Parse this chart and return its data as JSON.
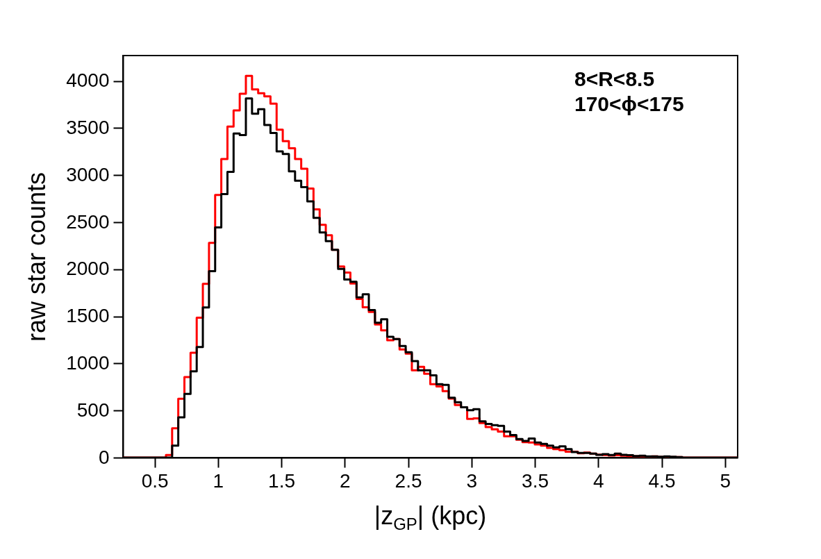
{
  "chart_data": {
    "type": "histogram",
    "xlabel": "|z$_{GP}$| (kpc)",
    "ylabel": "raw star counts",
    "annotations": [
      "8<R<8.5",
      "170<ϕ<175"
    ],
    "xlim": [
      0.25,
      5.1
    ],
    "xticks": [
      0.5,
      1,
      1.5,
      2,
      2.5,
      3,
      3.5,
      4,
      4.5,
      5
    ],
    "ylim": [
      0,
      4270
    ],
    "yticks": [
      0,
      500,
      1000,
      1500,
      2000,
      2500,
      3000,
      3500,
      4000
    ],
    "bins": [
      0.25,
      0.2985,
      0.347,
      0.3955,
      0.444,
      0.4925,
      0.541,
      0.5895,
      0.638,
      0.6865,
      0.735,
      0.7835,
      0.832,
      0.8805,
      0.929,
      0.9775,
      1.026,
      1.0745,
      1.123,
      1.1715,
      1.22,
      1.2685,
      1.317,
      1.3655,
      1.414,
      1.4625,
      1.511,
      1.5595,
      1.608,
      1.6565,
      1.705,
      1.7535,
      1.802,
      1.8505,
      1.899,
      1.9475,
      1.996,
      2.0445,
      2.093,
      2.1415,
      2.19,
      2.2385,
      2.287,
      2.3355,
      2.384,
      2.4325,
      2.481,
      2.5295,
      2.578,
      2.6265,
      2.675,
      2.7235,
      2.772,
      2.8205,
      2.869,
      2.9175,
      2.966,
      3.0145,
      3.063,
      3.1115,
      3.16,
      3.2085,
      3.257,
      3.3055,
      3.354,
      3.4025,
      3.451,
      3.4995,
      3.548,
      3.5965,
      3.645,
      3.6935,
      3.742,
      3.7905,
      3.839,
      3.8875,
      3.936,
      3.9845,
      4.033,
      4.0815,
      4.13,
      4.1785,
      4.227,
      4.2755,
      4.324,
      4.3725,
      4.421,
      4.4695,
      4.518,
      4.5665,
      4.615,
      4.6635,
      4.712,
      4.7605,
      4.809,
      4.8575,
      4.906,
      4.9545,
      5.003,
      5.0515,
      5.1
    ],
    "series": [
      {
        "color": "#ff0000",
        "values": [
          0,
          0,
          0,
          0,
          0,
          0,
          0,
          27,
          312,
          625,
          856,
          1114,
          1486,
          1845,
          2280,
          2790,
          3171,
          3516,
          3687,
          3864,
          4054,
          3910,
          3869,
          3836,
          3760,
          3483,
          3361,
          3285,
          3171,
          3068,
          2858,
          2637,
          2472,
          2362,
          2207,
          2030,
          1966,
          1850,
          1685,
          1597,
          1547,
          1415,
          1351,
          1247,
          1260,
          1149,
          1105,
          927,
          964,
          891,
          780,
          755,
          706,
          627,
          558,
          534,
          411,
          416,
          367,
          325,
          300,
          276,
          226,
          226,
          189,
          165,
          160,
          140,
          128,
          103,
          91,
          79,
          62,
          62,
          47,
          54,
          42,
          32,
          27,
          22,
          25,
          20,
          17,
          15,
          15,
          10,
          12,
          7,
          7,
          5,
          5,
          0,
          0,
          0,
          0,
          0,
          0,
          0,
          0,
          0
        ]
      },
      {
        "color": "#000000",
        "values": [
          0,
          0,
          0,
          0,
          0,
          0,
          0,
          0,
          128,
          427,
          677,
          916,
          1174,
          1595,
          1981,
          2445,
          2799,
          3035,
          3442,
          3426,
          3815,
          3652,
          3700,
          3532,
          3448,
          3252,
          3225,
          3040,
          2940,
          2872,
          2722,
          2546,
          2391,
          2300,
          2207,
          2005,
          1892,
          1867,
          1702,
          1734,
          1567,
          1432,
          1469,
          1284,
          1260,
          1186,
          1119,
          1026,
          927,
          927,
          873,
          780,
          772,
          637,
          588,
          534,
          504,
          514,
          386,
          357,
          344,
          337,
          276,
          239,
          197,
          177,
          202,
          160,
          145,
          128,
          108,
          120,
          91,
          59,
          49,
          49,
          42,
          30,
          37,
          27,
          42,
          30,
          25,
          17,
          20,
          12,
          12,
          10,
          12,
          10,
          5,
          0,
          0,
          0,
          0,
          0,
          0,
          0,
          0,
          0
        ]
      }
    ]
  }
}
